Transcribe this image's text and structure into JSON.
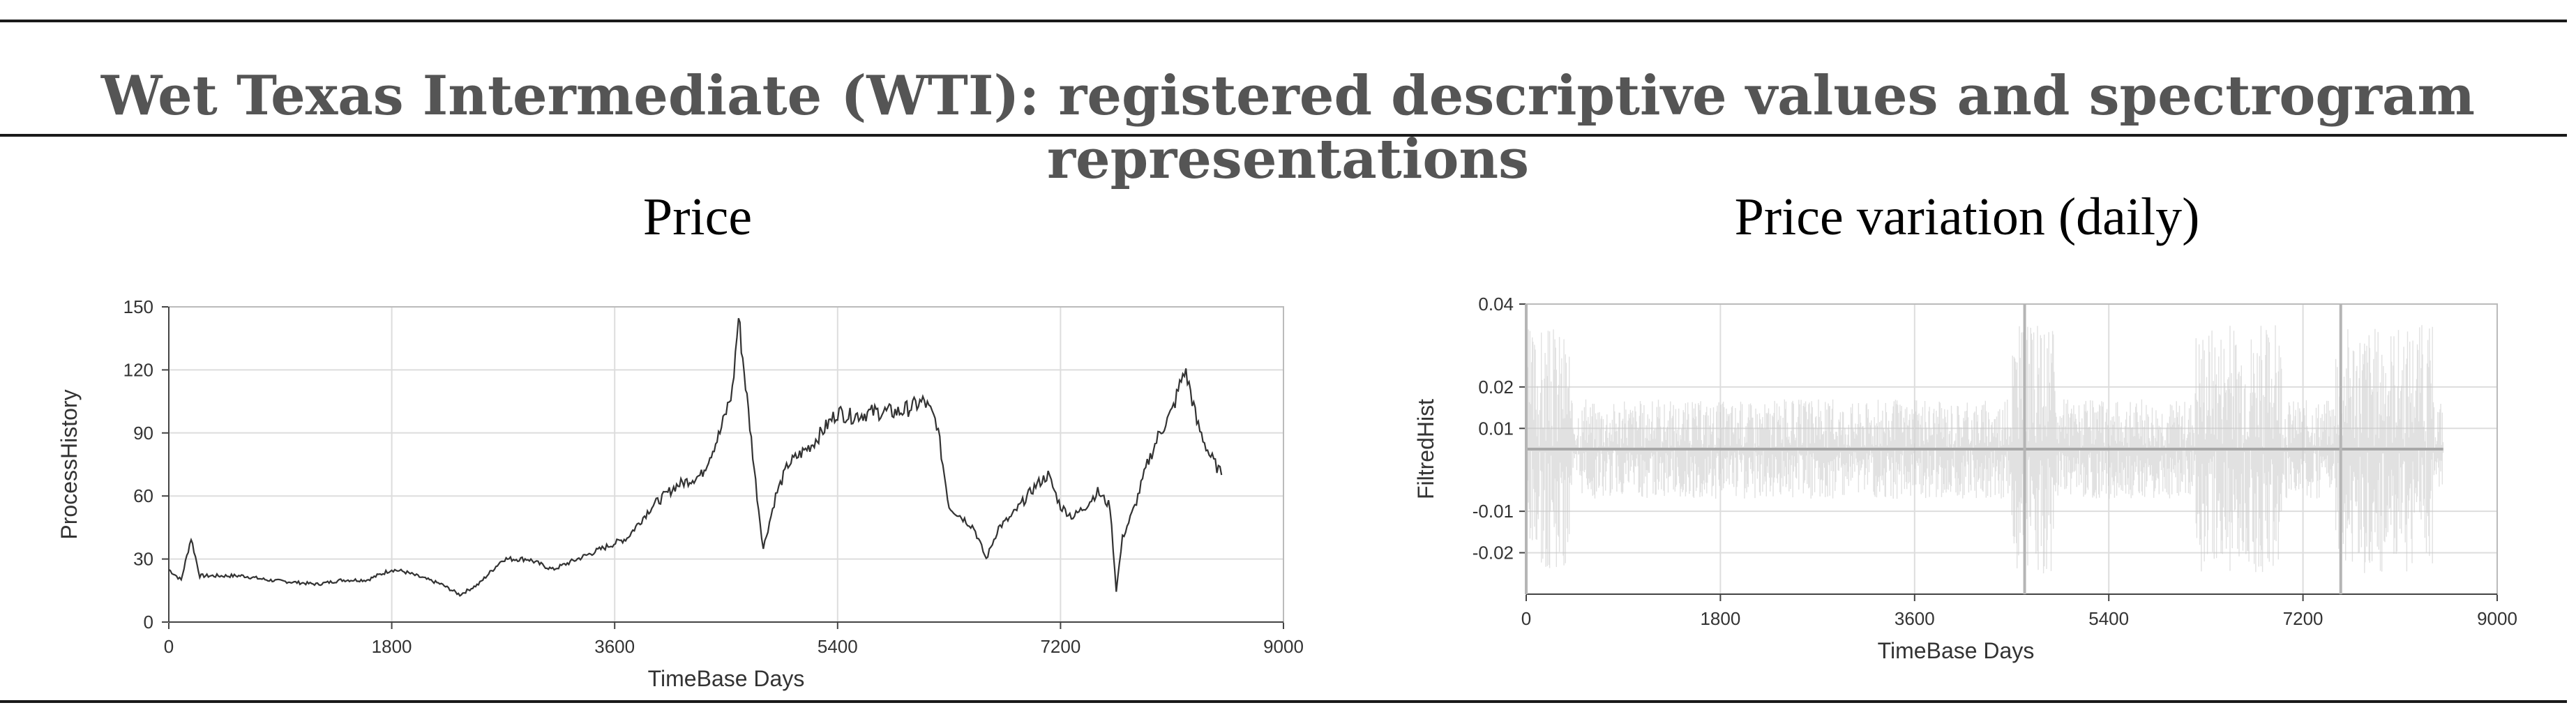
{
  "figure": {
    "title": "Wet Texas Intermediate (WTI): registered descriptive values and spectrogram representations"
  },
  "chart_data": [
    {
      "type": "line",
      "title": "Price",
      "xlabel": "TimeBase Days",
      "ylabel": "ProcessHistory",
      "xlim": [
        0,
        9000
      ],
      "ylim": [
        0,
        150
      ],
      "xticks": [
        "0",
        "1800",
        "3600",
        "5400",
        "7200",
        "9000"
      ],
      "yticks": [
        "0",
        "30",
        "60",
        "90",
        "120",
        "150"
      ],
      "grid": true,
      "colors": {
        "line": "#333333",
        "grid": "#dddddd",
        "axis": "#444444"
      },
      "series": [
        {
          "x": [
            0,
            100,
            180,
            250,
            400,
            600,
            800,
            1000,
            1200,
            1400,
            1600,
            1800,
            1900,
            2000,
            2200,
            2350,
            2500,
            2700,
            2900,
            3100,
            3300,
            3500,
            3700,
            3900,
            4100,
            4300,
            4450,
            4550,
            4600,
            4680,
            4750,
            4800,
            4900,
            5000,
            5200,
            5400,
            5500,
            5700,
            5900,
            6100,
            6200,
            6300,
            6400,
            6500,
            6600,
            6700,
            6800,
            7000,
            7100,
            7200,
            7300,
            7400,
            7500,
            7600,
            7650,
            7700,
            7800,
            7900,
            8000,
            8100,
            8200,
            8250,
            8300,
            8400,
            8500
          ],
          "y": [
            25,
            20,
            40,
            22,
            22,
            22,
            20,
            19,
            18,
            20,
            20,
            25,
            24,
            22,
            18,
            13,
            18,
            30,
            30,
            25,
            30,
            35,
            40,
            55,
            65,
            70,
            90,
            110,
            145,
            100,
            60,
            35,
            60,
            75,
            85,
            100,
            98,
            100,
            100,
            105,
            95,
            55,
            50,
            45,
            30,
            45,
            50,
            65,
            70,
            55,
            50,
            55,
            62,
            55,
            15,
            40,
            55,
            75,
            90,
            100,
            120,
            110,
            95,
            80,
            70
          ]
        }
      ]
    },
    {
      "type": "line",
      "title": "Price variation (daily)",
      "xlabel": "TimeBase Days",
      "ylabel": "FiltredHist",
      "xlim": [
        0,
        9000
      ],
      "ylim": [
        -0.03,
        0.04
      ],
      "xticks": [
        "0",
        "1800",
        "3600",
        "5400",
        "7200",
        "9000"
      ],
      "yticks": [
        "-0.02",
        "-0.01",
        "0.01",
        "0.02",
        "0.04"
      ],
      "grid": true,
      "colors": {
        "line": "#c8c8c8",
        "center": "#a8a8a8",
        "grid": "#dddddd",
        "axis": "#444444"
      }
    }
  ]
}
